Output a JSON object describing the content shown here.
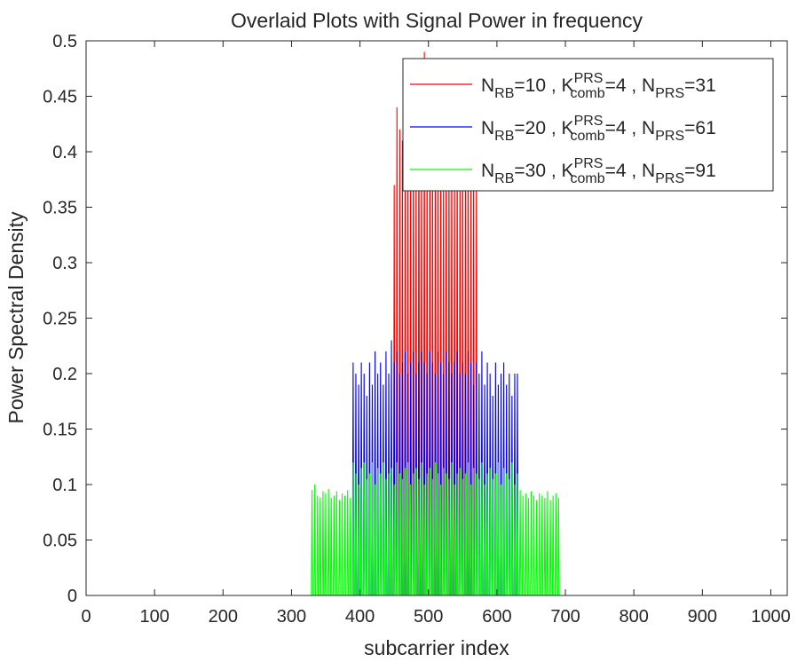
{
  "chart_data": {
    "type": "line",
    "title": "Overlaid Plots with Signal Power in frequency",
    "xlabel": "subcarrier index",
    "ylabel": "Power Spectral Density",
    "xlim": [
      0,
      1024
    ],
    "ylim": [
      0,
      0.5
    ],
    "xticks": [
      0,
      100,
      200,
      300,
      400,
      500,
      600,
      700,
      800,
      900,
      1000
    ],
    "yticks": [
      0,
      0.05,
      0.1,
      0.15,
      0.2,
      0.25,
      0.3,
      0.35,
      0.4,
      0.45,
      0.5
    ],
    "legend_position": "top-right",
    "grid": false,
    "series": [
      {
        "name_parts": {
          "N": "N",
          "RB": "RB",
          "nrb": "=10 , ",
          "K": "K",
          "sup": "PRS",
          "sub": "comb",
          "kval": "=4 , ",
          "Np": "N",
          "prs": "PRS",
          "nprs": "=31"
        },
        "color": "#ff0000",
        "band": [
          450,
          570
        ],
        "comb": 4,
        "peaks": [
          0.37,
          0.44,
          0.42,
          0.41,
          0.43,
          0.45,
          0.42,
          0.44,
          0.4,
          0.47,
          0.43,
          0.49,
          0.42,
          0.45,
          0.41,
          0.46,
          0.43,
          0.44,
          0.4,
          0.45,
          0.42,
          0.44,
          0.41,
          0.43,
          0.4,
          0.42,
          0.39,
          0.41,
          0.38,
          0.4,
          0.37
        ]
      },
      {
        "name_parts": {
          "N": "N",
          "RB": "RB",
          "nrb": "=20 , ",
          "K": "K",
          "sup": "PRS",
          "sub": "comb",
          "kval": "=4 , ",
          "Np": "N",
          "prs": "PRS",
          "nprs": "=61"
        },
        "color": "#0000ff",
        "band": [
          390,
          630
        ],
        "comb": 4,
        "peaks": [
          0.21,
          0.2,
          0.19,
          0.21,
          0.2,
          0.18,
          0.21,
          0.19,
          0.22,
          0.2,
          0.21,
          0.19,
          0.22,
          0.2,
          0.23,
          0.21,
          0.22,
          0.2,
          0.21,
          0.22,
          0.2,
          0.21,
          0.22,
          0.2,
          0.21,
          0.22,
          0.21,
          0.2,
          0.22,
          0.21,
          0.2,
          0.22,
          0.21,
          0.2,
          0.22,
          0.21,
          0.2,
          0.21,
          0.22,
          0.2,
          0.21,
          0.2,
          0.22,
          0.21,
          0.19,
          0.21,
          0.2,
          0.22,
          0.19,
          0.21,
          0.2,
          0.18,
          0.21,
          0.19,
          0.2,
          0.21,
          0.19,
          0.2,
          0.18,
          0.2,
          0.2
        ]
      },
      {
        "name_parts": {
          "N": "N",
          "RB": "RB",
          "nrb": "=30 , ",
          "K": "K",
          "sup": "PRS",
          "sub": "comb",
          "kval": "=4 , ",
          "Np": "N",
          "prs": "PRS",
          "nprs": "=91"
        },
        "color": "#00ff00",
        "band": [
          330,
          690
        ],
        "comb": 4,
        "peaks": [
          0.095,
          0.1,
          0.09,
          0.088,
          0.094,
          0.092,
          0.096,
          0.088,
          0.09,
          0.094,
          0.086,
          0.092,
          0.09,
          0.095,
          0.088,
          0.12,
          0.11,
          0.1,
          0.115,
          0.12,
          0.105,
          0.11,
          0.12,
          0.1,
          0.115,
          0.11,
          0.12,
          0.105,
          0.11,
          0.115,
          0.1,
          0.12,
          0.11,
          0.105,
          0.115,
          0.12,
          0.1,
          0.11,
          0.115,
          0.105,
          0.12,
          0.1,
          0.11,
          0.115,
          0.105,
          0.12,
          0.11,
          0.1,
          0.115,
          0.11,
          0.105,
          0.12,
          0.1,
          0.11,
          0.115,
          0.105,
          0.11,
          0.12,
          0.1,
          0.115,
          0.11,
          0.105,
          0.12,
          0.1,
          0.11,
          0.115,
          0.105,
          0.11,
          0.12,
          0.1,
          0.115,
          0.11,
          0.105,
          0.12,
          0.1,
          0.11,
          0.095,
          0.09,
          0.092,
          0.088,
          0.094,
          0.09,
          0.086,
          0.092,
          0.09,
          0.088,
          0.094,
          0.086,
          0.09,
          0.092,
          0.088
        ]
      }
    ]
  }
}
